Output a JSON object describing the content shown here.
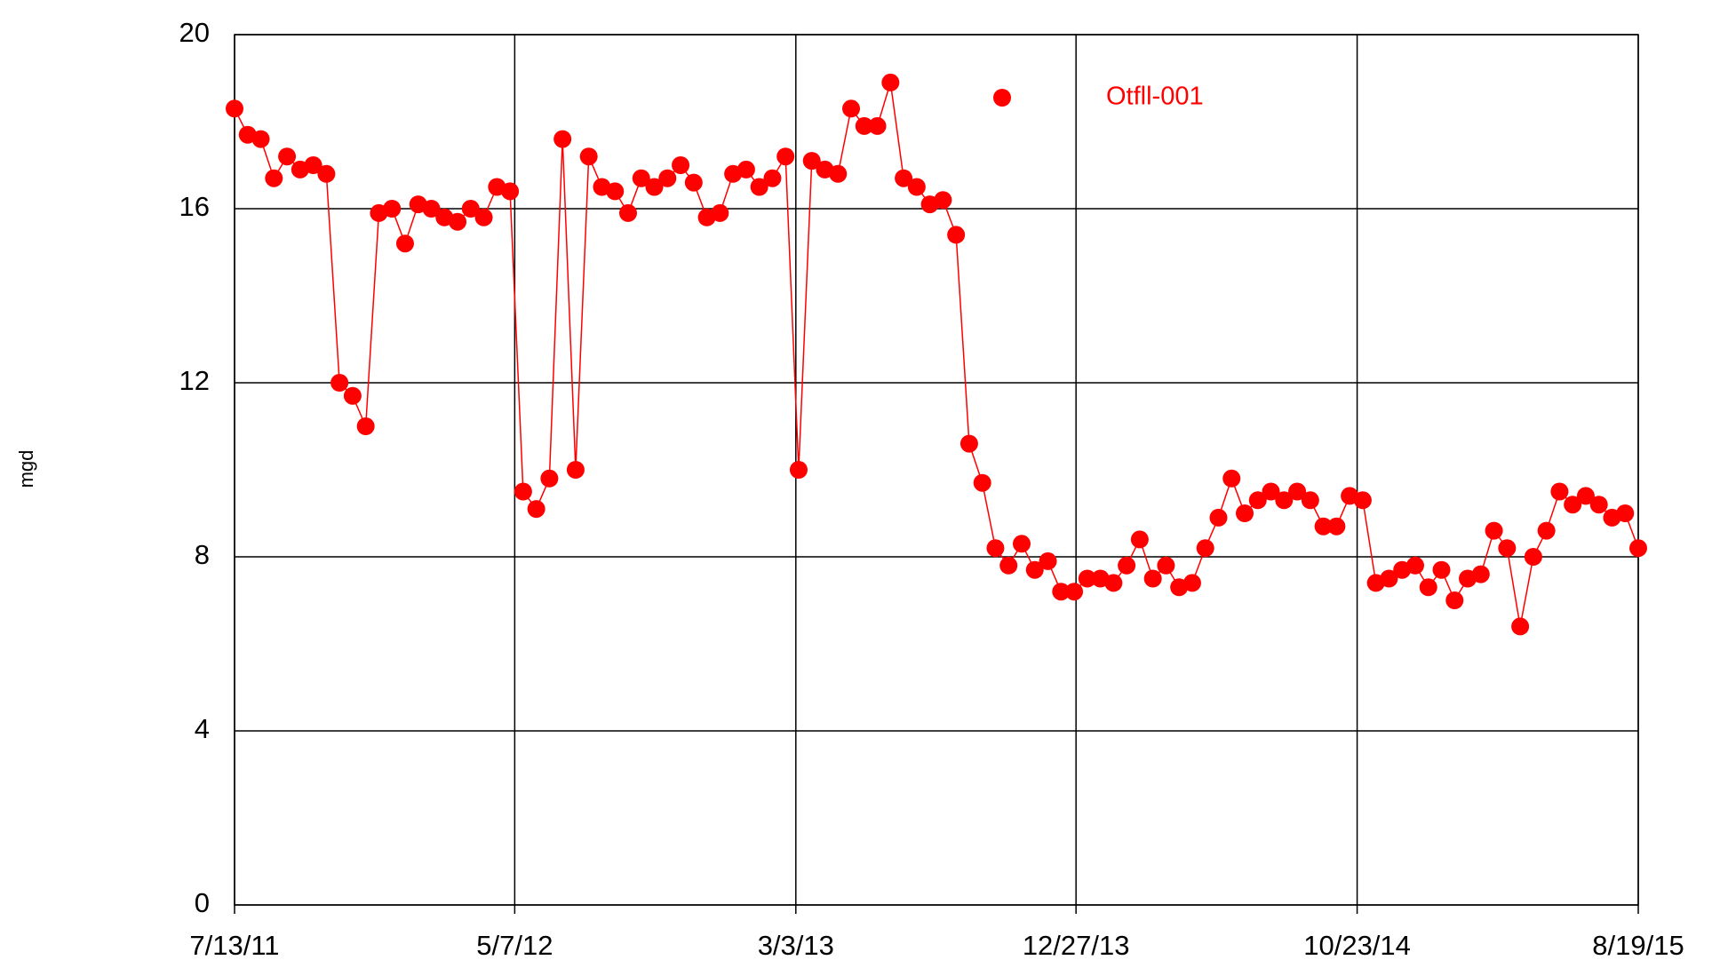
{
  "chart_data": {
    "type": "line",
    "y_label": "mgd",
    "legend": "top-right",
    "grid": true,
    "x": [
      "2011-07-13",
      "2011-07-27",
      "2011-08-10",
      "2011-08-24",
      "2011-09-07",
      "2011-09-21",
      "2011-10-05",
      "2011-10-19",
      "2011-11-02",
      "2011-11-16",
      "2011-11-30",
      "2011-12-14",
      "2011-12-28",
      "2012-01-11",
      "2012-01-25",
      "2012-02-08",
      "2012-02-22",
      "2012-03-07",
      "2012-03-21",
      "2012-04-04",
      "2012-04-18",
      "2012-05-02",
      "2012-05-16",
      "2012-05-30",
      "2012-06-13",
      "2012-06-27",
      "2012-07-11",
      "2012-07-25",
      "2012-08-08",
      "2012-08-22",
      "2012-09-05",
      "2012-09-19",
      "2012-10-03",
      "2012-10-17",
      "2012-10-31",
      "2012-11-14",
      "2012-11-28",
      "2012-12-12",
      "2012-12-26",
      "2013-01-09",
      "2013-01-23",
      "2013-02-06",
      "2013-02-20",
      "2013-03-06",
      "2013-03-20",
      "2013-04-03",
      "2013-04-17",
      "2013-05-01",
      "2013-05-15",
      "2013-05-29",
      "2013-06-12",
      "2013-06-26",
      "2013-07-10",
      "2013-07-24",
      "2013-08-07",
      "2013-08-21",
      "2013-09-04",
      "2013-09-18",
      "2013-10-02",
      "2013-10-16",
      "2013-10-30",
      "2013-11-13",
      "2013-11-27",
      "2013-12-11",
      "2013-12-25",
      "2014-01-08",
      "2014-01-22",
      "2014-02-05",
      "2014-02-19",
      "2014-03-05",
      "2014-03-19",
      "2014-04-02",
      "2014-04-16",
      "2014-04-30",
      "2014-05-14",
      "2014-05-28",
      "2014-06-11",
      "2014-06-25",
      "2014-07-09",
      "2014-07-23",
      "2014-08-06",
      "2014-08-20",
      "2014-09-03",
      "2014-09-17",
      "2014-10-01",
      "2014-10-15",
      "2014-10-29",
      "2014-11-12",
      "2014-11-26",
      "2014-12-10",
      "2014-12-24",
      "2015-01-07",
      "2015-01-21",
      "2015-02-04",
      "2015-02-18",
      "2015-03-04",
      "2015-03-18",
      "2015-04-01",
      "2015-04-15",
      "2015-04-29",
      "2015-05-13",
      "2015-05-27",
      "2015-06-10",
      "2015-06-24",
      "2015-07-08",
      "2015-07-22",
      "2015-08-05",
      "2015-08-19"
    ],
    "series": [
      {
        "name": "Otfll-001",
        "color": "#ff0000",
        "values": [
          18.3,
          17.7,
          17.6,
          16.7,
          17.2,
          16.9,
          17.0,
          16.8,
          12.0,
          11.7,
          11.0,
          15.9,
          16.0,
          15.2,
          16.1,
          16.0,
          15.8,
          15.7,
          16.0,
          15.8,
          16.5,
          16.4,
          9.5,
          9.1,
          9.8,
          17.6,
          10.0,
          17.2,
          16.5,
          16.4,
          15.9,
          16.7,
          16.5,
          16.7,
          17.0,
          16.6,
          15.8,
          15.9,
          16.8,
          16.9,
          16.5,
          16.7,
          17.2,
          10.0,
          17.1,
          16.9,
          16.8,
          18.3,
          17.9,
          17.9,
          18.9,
          16.7,
          16.5,
          16.1,
          16.2,
          15.4,
          10.6,
          9.7,
          8.2,
          7.8,
          8.3,
          7.7,
          7.9,
          7.2,
          7.2,
          7.5,
          7.5,
          7.4,
          7.8,
          8.4,
          7.5,
          7.8,
          7.3,
          7.4,
          8.2,
          8.9,
          9.8,
          9.0,
          9.3,
          9.5,
          9.3,
          9.5,
          9.3,
          8.7,
          8.7,
          9.4,
          9.3,
          7.4,
          7.5,
          7.7,
          7.8,
          7.3,
          7.7,
          7.0,
          7.5,
          7.6,
          8.6,
          8.2,
          6.4,
          8.0,
          8.6,
          9.5,
          9.2,
          9.4,
          9.2,
          8.9,
          9.0,
          8.2
        ]
      }
    ],
    "xlim": [
      "2011-07-13",
      "2015-08-19"
    ],
    "xticks": [
      {
        "value": "2011-07-13",
        "label": "7/13/11"
      },
      {
        "value": "2012-05-07",
        "label": "5/7/12"
      },
      {
        "value": "2013-03-03",
        "label": "3/3/13"
      },
      {
        "value": "2013-12-27",
        "label": "12/27/13"
      },
      {
        "value": "2014-10-23",
        "label": "10/23/14"
      },
      {
        "value": "2015-08-19",
        "label": "8/19/15"
      }
    ],
    "ylim": [
      0,
      20
    ],
    "yticks": [
      0,
      4,
      8,
      12,
      16,
      20
    ]
  }
}
